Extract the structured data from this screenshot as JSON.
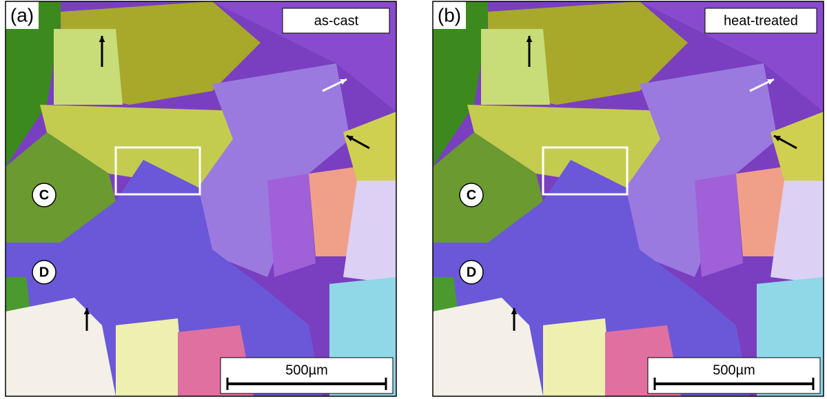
{
  "panels": [
    {
      "label": "(a)",
      "condition": "as-cast",
      "grain_labels": [
        "C",
        "D"
      ],
      "scale_bar": "500µm"
    },
    {
      "label": "(b)",
      "condition": "heat-treated",
      "grain_labels": [
        "C",
        "D"
      ],
      "scale_bar": "500µm"
    }
  ]
}
